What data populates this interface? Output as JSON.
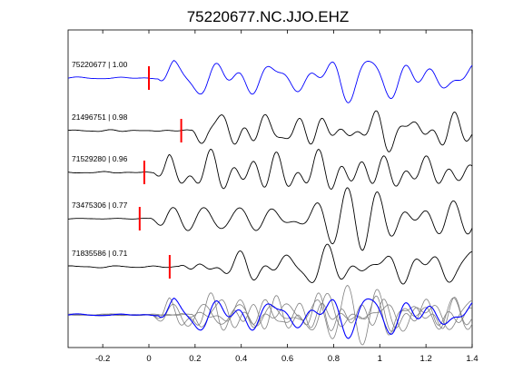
{
  "chart_data": {
    "type": "line",
    "title": "75220677.NC.JJO.EHZ",
    "xlabel": "",
    "ylabel": "",
    "xlim": [
      -0.35,
      1.4
    ],
    "xticks": [
      "-0.2",
      "0",
      "0.2",
      "0.4",
      "0.6",
      "0.8",
      "1",
      "1.2",
      "1.4"
    ],
    "xtick_values": [
      -0.2,
      0,
      0.2,
      0.4,
      0.6,
      0.8,
      1.0,
      1.2,
      1.4
    ],
    "grid": false,
    "legend": "none",
    "series": [
      {
        "name": "75220677 | 1.00",
        "pick": 0.0,
        "color": "#0000ff"
      },
      {
        "name": "21496751 | 0.98",
        "pick": 0.14,
        "color": "#000000"
      },
      {
        "name": "71529280 | 0.96",
        "pick": -0.02,
        "color": "#000000"
      },
      {
        "name": "73475306 | 0.77",
        "pick": -0.04,
        "color": "#000000"
      },
      {
        "name": "71835586 | 0.71",
        "pick": 0.09,
        "color": "#000000"
      }
    ],
    "stack": {
      "description_colors": {
        "reference": "#0000ff",
        "others": "#808080"
      }
    },
    "pick_color": "#ff0000"
  }
}
